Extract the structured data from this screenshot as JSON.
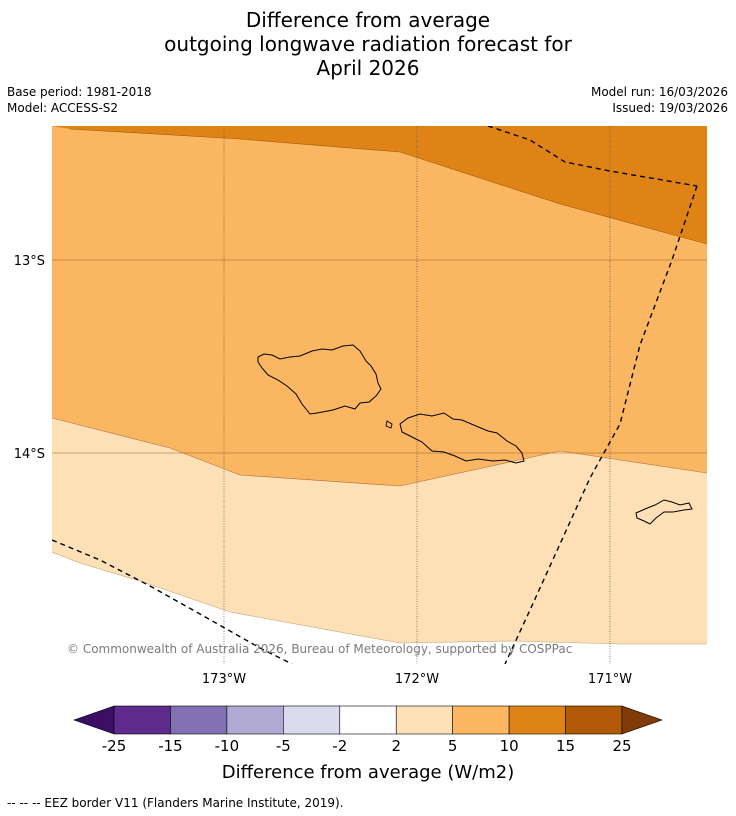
{
  "header": {
    "title_lines": [
      "Difference from average",
      "outgoing longwave radiation forecast for",
      "April 2026"
    ],
    "base_period": "Base period: 1981-2018",
    "model": "Model: ACCESS-S2",
    "model_run": "Model run: 16/03/2026",
    "issued": "Issued: 19/03/2026"
  },
  "map": {
    "lat_labels": [
      "13°S",
      "14°S"
    ],
    "lon_labels": [
      "173°W",
      "172°W",
      "171°W"
    ],
    "copyright": "© Commonwealth of Australia 2026, Bureau of Meteorology, supported by COSPPac",
    "category_colors": {
      "2_to_5": "#fde0b6",
      "5_to_10": "#fbb661",
      "10_to_15": "#e08316"
    }
  },
  "colorbar": {
    "ticks": [
      "-25",
      "-15",
      "-10",
      "-5",
      "-2",
      "2",
      "5",
      "10",
      "15",
      "25"
    ],
    "colors": [
      "#3b0f63",
      "#5e2a8c",
      "#8272b2",
      "#b0a9d4",
      "#dadbec",
      "#ffffff",
      "#fde0b6",
      "#fbb661",
      "#e08316",
      "#b35a09",
      "#7f3b08"
    ],
    "label": "Difference from average (W/m2)"
  },
  "footer": {
    "legend_note": "--  --  -- EEZ border V11 (Flanders Marine Institute, 2019)."
  }
}
